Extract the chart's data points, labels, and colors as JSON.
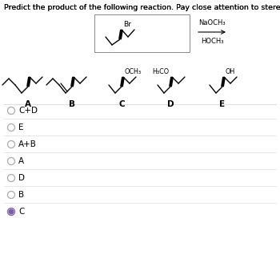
{
  "title": "Predict the product of the following reaction. Pay close attention to stereochemistry.",
  "title_fontsize": 6.8,
  "background_color": "#ffffff",
  "answer_choices": [
    "C+D",
    "E",
    "A+B",
    "A",
    "D",
    "B",
    "C"
  ],
  "selected_answer": "C",
  "molecule_labels": [
    "A",
    "B",
    "C",
    "D",
    "E"
  ],
  "reagent_line1": "NaOCH₃",
  "reagent_line2": "HOCH₃",
  "substituent_C": "OCH₃",
  "substituent_D": "H₃CO",
  "substituent_E": "OH",
  "radio_selected_color": "#7b5ea7",
  "radio_unselected_color": "#aaaaaa",
  "divider_color": "#dddddd",
  "label_fontsize": 7.5,
  "choice_fontsize": 7.5
}
